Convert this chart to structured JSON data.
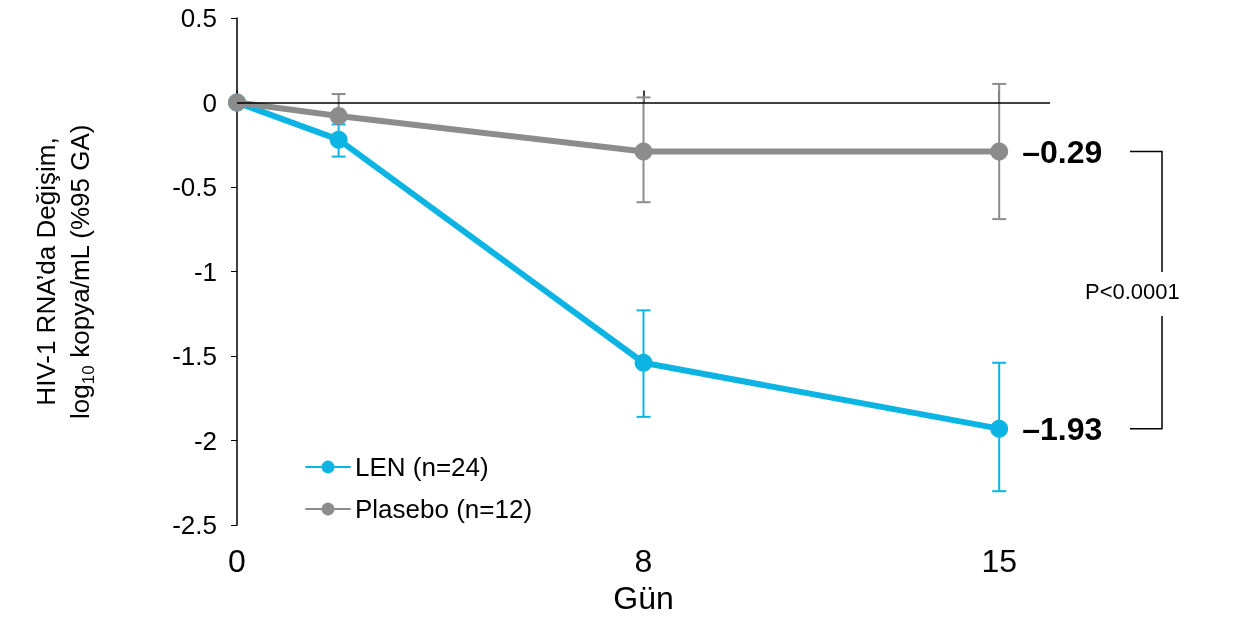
{
  "chart_data": {
    "type": "line",
    "xlabel": "Gün",
    "ylabel": "HIV-1 RNA’da Değişim,\nlog$_{10}$ kopya/mL (%95 GA)",
    "x": [
      0,
      2,
      8,
      15
    ],
    "series": [
      {
        "name": "LEN (n=24)",
        "color": "#0cb4e4",
        "values": [
          0,
          -0.22,
          -1.54,
          -1.93
        ],
        "errors": [
          null,
          [
            -0.32,
            -0.13
          ],
          [
            -1.86,
            -1.23
          ],
          [
            -2.3,
            -1.54
          ]
        ],
        "value_labels": [
          null,
          null,
          null,
          "–1.93"
        ]
      },
      {
        "name": "Plasebo (n=12)",
        "color": "#8c8c8c",
        "values": [
          0,
          -0.08,
          -0.29,
          -0.29
        ],
        "errors": [
          null,
          [
            -0.08,
            0.05
          ],
          [
            -0.59,
            0.03
          ],
          [
            -0.69,
            0.11
          ]
        ],
        "value_labels": [
          null,
          null,
          null,
          "–0.29"
        ]
      }
    ],
    "xlim": [
      0,
      16
    ],
    "xticks": [
      0,
      8,
      15
    ],
    "ylim": [
      -2.5,
      0.5
    ],
    "yticks": [
      0.5,
      0,
      -0.5,
      -1,
      -1.5,
      -2,
      -2.5
    ],
    "ref_lines": [
      {
        "axis": "y",
        "value": 0,
        "color": "#000000"
      }
    ],
    "annotations": [
      "P<0.0001"
    ],
    "grid": false,
    "legend": "bottom left",
    "marker": "circle",
    "line_style": "solid"
  }
}
